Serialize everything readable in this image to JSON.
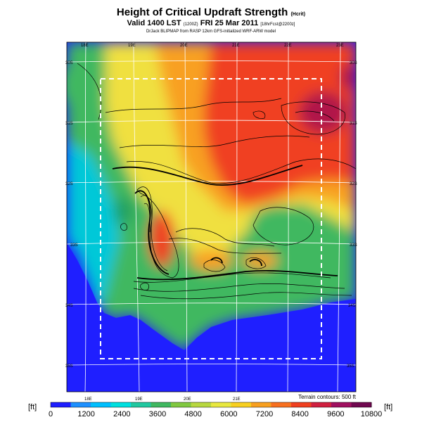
{
  "title": "Height of Critical Updraft Strength",
  "title_units": "(Hcrit)",
  "subtitle": {
    "valid": "Valid 1400 LST",
    "utc": "(1200Z)",
    "date": "FRI 25 Mar 2011",
    "forecast": "[18hrFcst@2200z]"
  },
  "credit": "DrJack BLIPMAP from RASP 12km GFS-initialized WRF-ARW model",
  "longitude_labels": [
    "18E",
    "19E",
    "20E",
    "21E",
    "22E",
    "23E"
  ],
  "latitude_labels_right": [
    "30S",
    "31S",
    "32S",
    "33S",
    "34S",
    "35S"
  ],
  "latitude_labels_left": [
    "30S",
    "31S",
    "32S",
    "33S",
    "34S",
    "35S"
  ],
  "terrain_note": "Terrain contours: 500 ft",
  "colorbar": {
    "unit": "[ft]",
    "ticks": [
      "0",
      "1200",
      "2400",
      "3600",
      "4800",
      "6000",
      "7200",
      "8400",
      "9600",
      "10800"
    ],
    "colors": [
      "#1e1eff",
      "#1e90ff",
      "#00bfff",
      "#00e0e0",
      "#20c8a0",
      "#40b860",
      "#80c840",
      "#b8d840",
      "#e8e840",
      "#f8d020",
      "#f8a020",
      "#f87020",
      "#f04020",
      "#d02040",
      "#a01060",
      "#700850"
    ]
  },
  "map_colors": {
    "ocean": "#1f1fff",
    "low": "#00c8d8",
    "green": "#40b860",
    "yellow": "#f0e040",
    "orange": "#f8a020",
    "red": "#f04020",
    "darkred": "#b01848"
  },
  "chart_data": {
    "type": "heatmap",
    "variable": "Height of Critical Updraft Strength",
    "units": "ft",
    "colorbar_range": [
      0,
      10800
    ],
    "colorbar_step": 1200,
    "longitude_range_deg_E": [
      17.8,
      23.3
    ],
    "latitude_range_deg_S": [
      30.0,
      35.6
    ],
    "regions": [
      {
        "area": "ocean (south & west)",
        "value_ft": 0
      },
      {
        "area": "western coast",
        "value_ft": 2400
      },
      {
        "area": "Cape Fold Belt north of coast",
        "value_ft": 4800
      },
      {
        "area": "central Karoo",
        "value_ft": 6600
      },
      {
        "area": "northern interior near 22E-23E",
        "value_ft": 9600
      },
      {
        "area": "north-east corner",
        "value_ft": 10500
      }
    ]
  }
}
